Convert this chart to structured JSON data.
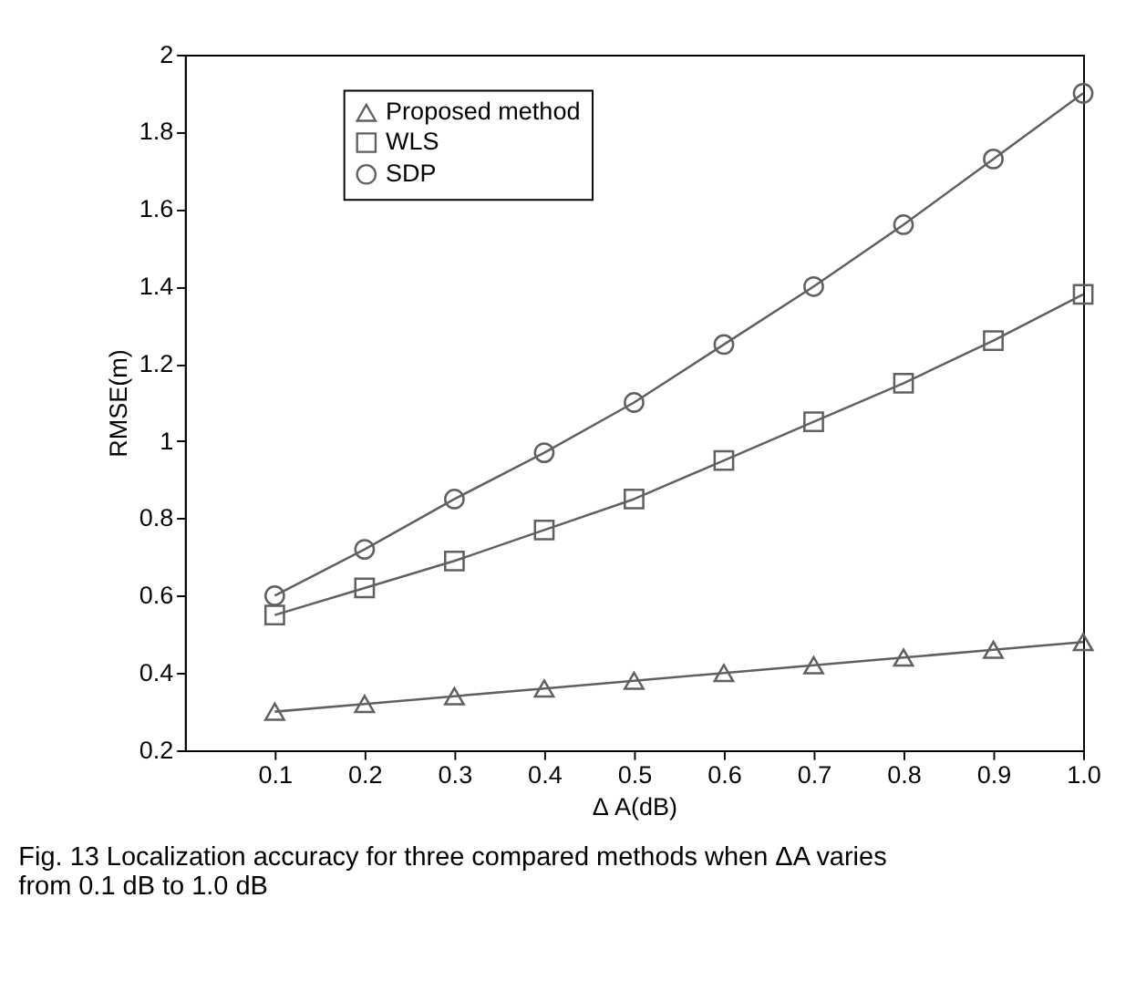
{
  "chart_data": {
    "type": "line",
    "xlabel": "Δ A(dB)",
    "ylabel": "RMSE(m)",
    "x": [
      0.1,
      0.2,
      0.3,
      0.4,
      0.5,
      0.6,
      0.7,
      0.8,
      0.9,
      1.0
    ],
    "series": [
      {
        "name": "Proposed method",
        "color": "#606060",
        "marker": "triangle",
        "values": [
          0.3,
          0.32,
          0.34,
          0.36,
          0.38,
          0.4,
          0.42,
          0.44,
          0.46,
          0.48
        ]
      },
      {
        "name": "WLS",
        "color": "#606060",
        "marker": "square",
        "values": [
          0.55,
          0.62,
          0.69,
          0.77,
          0.85,
          0.95,
          1.05,
          1.15,
          1.26,
          1.38
        ]
      },
      {
        "name": "SDP",
        "color": "#606060",
        "marker": "circle",
        "values": [
          0.6,
          0.72,
          0.85,
          0.97,
          1.1,
          1.25,
          1.4,
          1.56,
          1.73,
          1.9
        ]
      }
    ],
    "xlim": [
      0,
      1.0
    ],
    "xticks": [
      0.1,
      0.2,
      0.3,
      0.4,
      0.5,
      0.6,
      0.7,
      0.8,
      0.9,
      {
        "value": 1.0,
        "label": "1.0"
      }
    ],
    "ylim": [
      0.2,
      2
    ],
    "yticks": [
      0.2,
      0.4,
      0.6,
      0.8,
      1,
      1.2,
      1.4,
      1.6,
      1.8,
      2
    ],
    "legend": "top left",
    "grid": false,
    "line_style": "solid",
    "annotations": [
      "Fig. 13 Localization accuracy for three compared methods when ΔA varies from 0.1 dB to 1.0 dB"
    ]
  }
}
